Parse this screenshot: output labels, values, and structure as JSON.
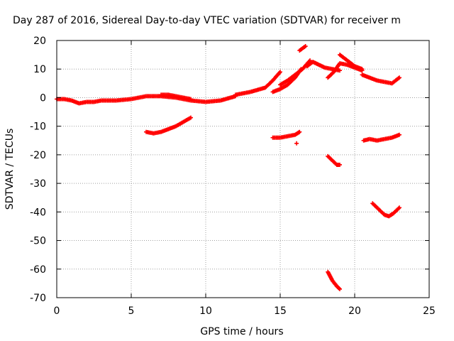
{
  "chart_data": {
    "type": "scatter",
    "title": "Day 287 of 2016, Sidereal Day-to-day VTEC variation (SDTVAR) for receiver m",
    "xlabel": "GPS time / hours",
    "ylabel": "SDTVAR / TECUs",
    "xlim": [
      0,
      25
    ],
    "ylim": [
      -70,
      20
    ],
    "xticks": [
      0,
      5,
      10,
      15,
      20,
      25
    ],
    "yticks": [
      20,
      10,
      0,
      -10,
      -20,
      -30,
      -40,
      -50,
      -60,
      -70
    ],
    "grid": true,
    "legend": "none",
    "marker": "plus",
    "color": "#ff0000",
    "series": [
      {
        "x": [
          0.0,
          0.5,
          1.0,
          1.5,
          2.0,
          2.5,
          3.0,
          4.0,
          5.0,
          6.0,
          7.0,
          8.0,
          9.0,
          10.0,
          11.0,
          12.0
        ],
        "y": [
          -0.5,
          -0.5,
          -1.0,
          -2.0,
          -1.5,
          -1.5,
          -1.0,
          -1.0,
          -0.5,
          0.5,
          0.5,
          0.0,
          -1.0,
          -1.5,
          -1.0,
          0.5
        ]
      },
      {
        "x": [
          6.0,
          6.5,
          7.0,
          7.5,
          8.0,
          8.5,
          9.0
        ],
        "y": [
          -12.0,
          -12.5,
          -12.0,
          -11.0,
          -10.0,
          -8.5,
          -7.0
        ]
      },
      {
        "x": [
          7.0,
          7.5,
          8.0,
          8.5,
          9.0
        ],
        "y": [
          1.0,
          1.0,
          0.5,
          0.0,
          -0.5
        ]
      },
      {
        "x": [
          12.0,
          13.0,
          14.0,
          14.5,
          15.0
        ],
        "y": [
          1.0,
          2.0,
          3.5,
          6.0,
          9.0
        ]
      },
      {
        "x": [
          14.5,
          15.0,
          15.5,
          16.0,
          16.4
        ],
        "y": [
          2.0,
          3.0,
          4.5,
          7.0,
          10.0
        ]
      },
      {
        "x": [
          15.0,
          15.5,
          16.0,
          16.5,
          17.0
        ],
        "y": [
          4.5,
          6.0,
          8.0,
          10.0,
          13.0
        ]
      },
      {
        "x": [
          16.3,
          16.7
        ],
        "y": [
          16.5,
          18.0
        ]
      },
      {
        "x": [
          14.5,
          15.0,
          15.5,
          16.0,
          16.3
        ],
        "y": [
          -14.0,
          -14.0,
          -13.5,
          -13.0,
          -12.0
        ]
      },
      {
        "x": [
          16.1
        ],
        "y": [
          -16.0
        ]
      },
      {
        "x": [
          16.8,
          17.2,
          17.6,
          18.0,
          18.5,
          19.0
        ],
        "y": [
          11.0,
          12.5,
          11.5,
          10.5,
          10.0,
          9.5
        ]
      },
      {
        "x": [
          18.2,
          18.6,
          19.0,
          19.5,
          20.0,
          20.5
        ],
        "y": [
          7.0,
          9.0,
          12.0,
          11.5,
          10.5,
          9.5
        ]
      },
      {
        "x": [
          19.0,
          19.5,
          20.0,
          20.5
        ],
        "y": [
          15.0,
          13.0,
          11.0,
          10.0
        ]
      },
      {
        "x": [
          20.5,
          21.0,
          21.5,
          22.0,
          22.5,
          23.0
        ],
        "y": [
          8.0,
          7.0,
          6.0,
          5.5,
          5.0,
          7.0
        ]
      },
      {
        "x": [
          18.2,
          18.5,
          18.8,
          19.0
        ],
        "y": [
          -20.5,
          -22.0,
          -23.5,
          -23.5
        ]
      },
      {
        "x": [
          20.6,
          21.0,
          21.5,
          22.0,
          22.5,
          23.0
        ],
        "y": [
          -15.0,
          -14.5,
          -15.0,
          -14.5,
          -14.0,
          -13.0
        ]
      },
      {
        "x": [
          21.2,
          21.5,
          22.0,
          22.3,
          22.6,
          23.0
        ],
        "y": [
          -37.0,
          -38.5,
          -41.0,
          -41.5,
          -40.5,
          -38.5
        ]
      },
      {
        "x": [
          18.2,
          18.5,
          18.8,
          19.0
        ],
        "y": [
          -61.0,
          -64.0,
          -66.0,
          -67.0
        ]
      }
    ]
  }
}
